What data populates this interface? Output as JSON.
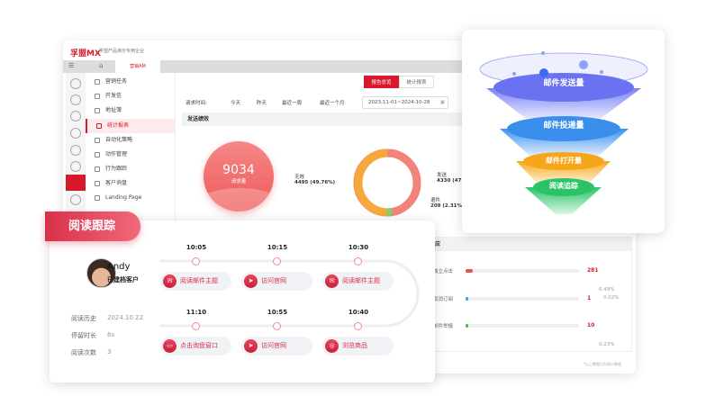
{
  "header": {
    "logo": "孚盟MX",
    "org": "孚盟产品演示专用企业",
    "active_tab": "营销AM"
  },
  "menu": [
    {
      "label": "营销任务"
    },
    {
      "label": "开发信"
    },
    {
      "label": "地址簿"
    },
    {
      "label": "统计报表",
      "active": true
    },
    {
      "label": "自动化策略"
    },
    {
      "label": "动作管理"
    },
    {
      "label": "行为跟踪"
    },
    {
      "label": "客户询盘"
    },
    {
      "label": "Landing Page"
    }
  ],
  "view_tabs": [
    "报告总览",
    "统计报表"
  ],
  "filter": {
    "label": "请求时间:",
    "options": [
      "今天",
      "昨天",
      "最近一周",
      "最近一个月"
    ],
    "date_range": "2023-11-01~2024-10-28"
  },
  "section_title": "发送绩效",
  "requests": {
    "value": "9034",
    "label": "请求量"
  },
  "donut": {
    "segments": [
      {
        "name": "无效",
        "value": "4495",
        "pct": "(49.76%)",
        "color": "#f5a93a"
      },
      {
        "name": "发送",
        "value": "4330",
        "pct": "(47",
        "color": "#f2837a"
      },
      {
        "name": "退件",
        "value": "209",
        "pct": "(2.31%)",
        "color": "#7ed36b"
      }
    ]
  },
  "response": {
    "title": "响应",
    "rows": [
      {
        "label": "独立点击",
        "value": "281",
        "pct": "6.49%",
        "fill": 0.0649,
        "color": "#f0504a"
      },
      {
        "label": "取消订阅",
        "value": "1",
        "pct": "0.02%",
        "fill": 0.0002,
        "color": "#1ab3e8"
      },
      {
        "label": "邮件举报",
        "value": "10",
        "pct": "0.23%",
        "fill": 0.0023,
        "color": "#3cc43c"
      }
    ],
    "note": "*以上数据均为演示数据"
  },
  "funnel": [
    "邮件发送量",
    "邮件投递量",
    "邮件打开量",
    "阅读追踪"
  ],
  "tracking": {
    "title": "阅读跟踪",
    "user": {
      "name": "Andy",
      "status": "已建档客户"
    },
    "stats": [
      {
        "label": "阅读历史",
        "value": "2024.10.22"
      },
      {
        "label": "停留时长",
        "value": "6s"
      },
      {
        "label": "阅读次数",
        "value": "3"
      }
    ],
    "events": [
      {
        "time": "10:05",
        "action": "阅读邮件主题",
        "icon": "mail-icon"
      },
      {
        "time": "10:15",
        "action": "访问官网",
        "icon": "send-icon"
      },
      {
        "time": "10:30",
        "action": "阅读邮件主题",
        "icon": "mail-icon"
      },
      {
        "time": "11:10",
        "action": "点击询盘窗口",
        "icon": "chat-icon"
      },
      {
        "time": "10:55",
        "action": "访问官网",
        "icon": "send-icon"
      },
      {
        "time": "10:40",
        "action": "浏览商品",
        "icon": "target-icon"
      }
    ]
  }
}
